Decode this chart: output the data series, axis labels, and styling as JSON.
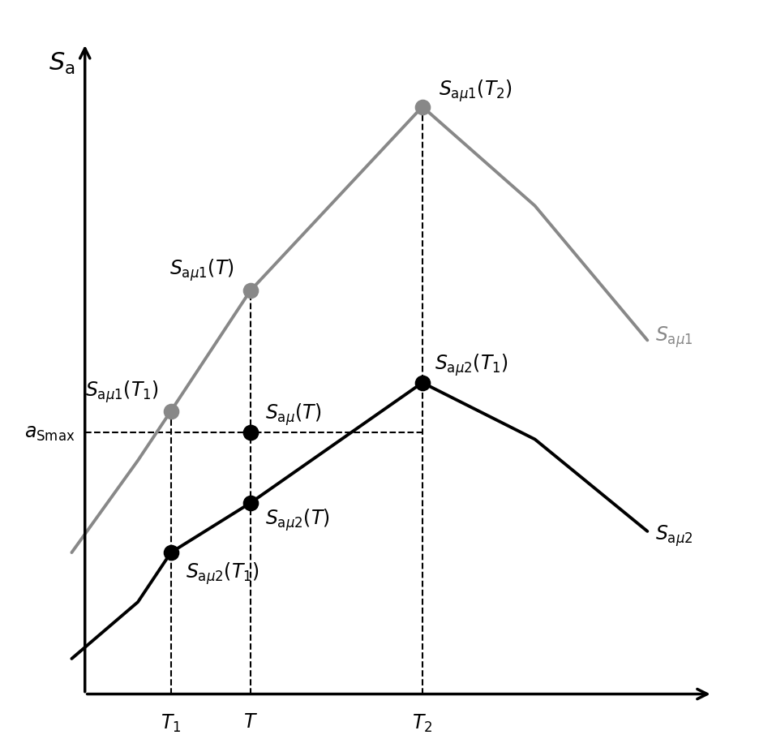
{
  "fig_width": 9.52,
  "fig_height": 9.28,
  "dpi": 100,
  "background_color": "#ffffff",
  "T1": 2.0,
  "T": 3.2,
  "T2": 5.8,
  "curve1_color": "#888888",
  "curve1_linewidth": 2.8,
  "curve1_x": [
    0.5,
    1.5,
    2.0,
    3.2,
    5.8,
    7.5,
    9.2
  ],
  "curve1_y": [
    2.5,
    3.8,
    4.5,
    6.2,
    8.8,
    7.4,
    5.5
  ],
  "curve2_color": "#000000",
  "curve2_linewidth": 2.8,
  "curve2_x": [
    0.5,
    1.5,
    2.0,
    3.2,
    5.8,
    7.5,
    9.2
  ],
  "curve2_y": [
    1.0,
    1.8,
    2.5,
    3.2,
    4.9,
    4.1,
    2.8
  ],
  "a_smax": 4.2,
  "dot_color1": "#888888",
  "dot_color2": "#000000",
  "dot_size": 80,
  "dashed_color": "#000000",
  "dashed_linewidth": 1.5,
  "xlim_max": 10.5,
  "ylim_max": 10.0,
  "label_Sa": "$S_{\\mathrm{a}}$",
  "text_Sa_mu1_T2": "$S_{\\mathrm{a}\\mu 1}(T_2)$",
  "text_Sa_mu1_T": "$S_{\\mathrm{a}\\mu 1}(T)$",
  "text_Sa_mu1_T1": "$S_{\\mathrm{a}\\mu 1}(T_1)$",
  "text_Sa_mu2_T1_upper": "$S_{\\mathrm{a}\\mu 2}(T_1)$",
  "text_Sa_mu_T": "$S_{\\mathrm{a}\\mu}(T)$",
  "text_Sa_mu2_T": "$S_{\\mathrm{a}\\mu 2}(T)$",
  "text_Sa_mu2_T1_lower": "$S_{\\mathrm{a}\\mu 2}(T_1)$",
  "text_a_smax": "$a_{\\mathrm{Smax}}$",
  "text_Sa_mu1_label": "$S_{\\mathrm{a}\\mu 1}$",
  "text_Sa_mu2_label": "$S_{\\mathrm{a}\\mu 2}$",
  "tick_T1": "$T_1$",
  "tick_T": "$T$",
  "tick_T2": "$T_2$",
  "fontsize": 17,
  "axis_label_fontsize": 20
}
